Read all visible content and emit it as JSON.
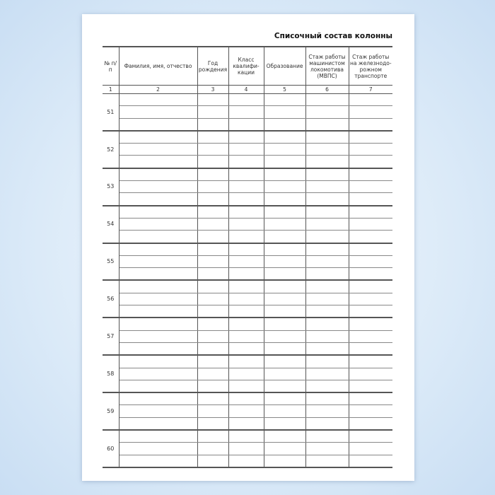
{
  "title": "Списочный состав колонны",
  "headers": [
    "№ п/п",
    "Фамилия, имя, отчество",
    "Год рождения",
    "Класс квалифи-кации",
    "Образование",
    "Стаж работы машинистом локомотива (МВПС)",
    "Стаж работы на железнодо-рожном транспорте"
  ],
  "column_numbers": [
    "1",
    "2",
    "3",
    "4",
    "5",
    "6",
    "7"
  ],
  "rows": [
    "51",
    "52",
    "53",
    "54",
    "55",
    "56",
    "57",
    "58",
    "59",
    "60"
  ]
}
